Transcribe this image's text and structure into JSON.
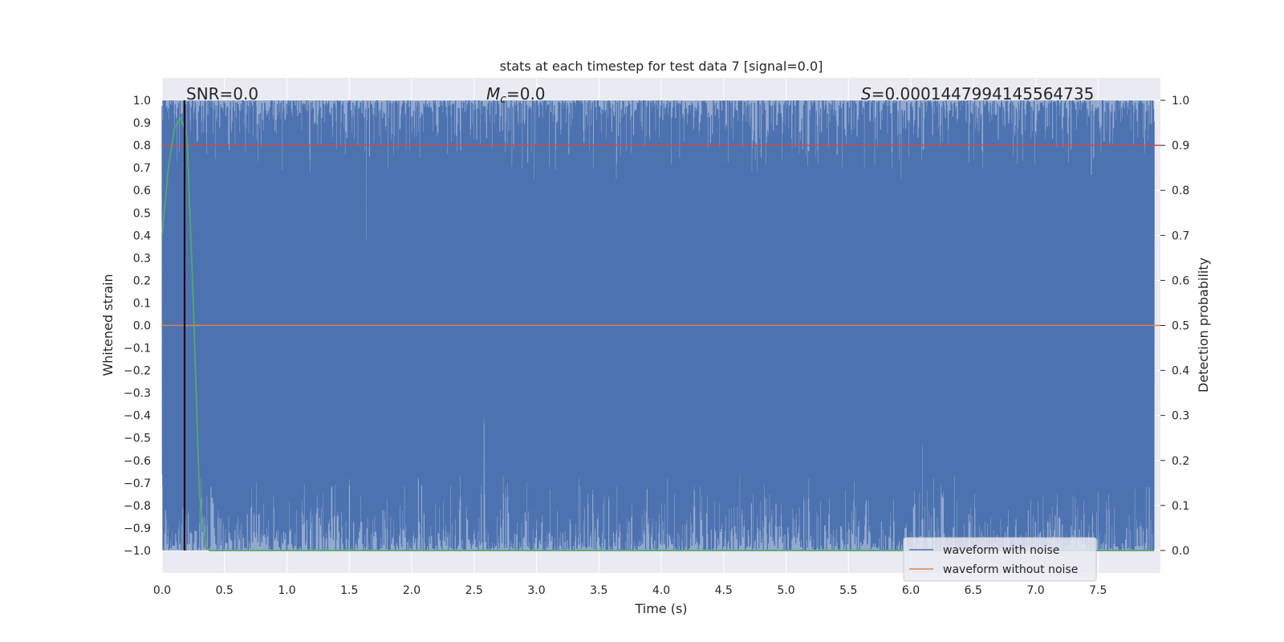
{
  "chart_data": {
    "type": "line",
    "title": "stats at each timestep for test data 7 [signal=0.0]",
    "xlabel": "Time (s)",
    "ylabel_left": "Whitened strain",
    "ylabel_right": "Detection probability",
    "xlim": [
      0,
      8
    ],
    "ylim_left": [
      -1.1,
      1.1
    ],
    "ylim_right": [
      -0.05,
      1.05
    ],
    "x_ticks": [
      "0.0",
      "0.5",
      "1.0",
      "1.5",
      "2.0",
      "2.5",
      "3.0",
      "3.5",
      "4.0",
      "4.5",
      "5.0",
      "5.5",
      "6.0",
      "6.5",
      "7.0",
      "7.5"
    ],
    "y_left_ticks": [
      "1.0",
      "0.9",
      "0.8",
      "0.7",
      "0.6",
      "0.5",
      "0.4",
      "0.3",
      "0.2",
      "0.1",
      "0.0",
      "−0.1",
      "−0.2",
      "−0.3",
      "−0.4",
      "−0.5",
      "−0.6",
      "−0.7",
      "−0.8",
      "−0.9",
      "−1.0"
    ],
    "y_right_ticks": [
      "1.0",
      "0.9",
      "0.8",
      "0.7",
      "0.6",
      "0.5",
      "0.4",
      "0.3",
      "0.2",
      "0.1",
      "0.0"
    ],
    "grid": true,
    "legend_placement": "lower-right",
    "annotations": {
      "snr": "SNR=0.0",
      "mc_symbol": "M",
      "mc_subscript": "c",
      "mc_value": "=0.0",
      "s_symbol": "S",
      "s_value": "=0.0001447994145564735"
    },
    "series": [
      {
        "name": "waveform with noise",
        "color": "#4c72b0",
        "axis": "left",
        "description_range": [
          -1.0,
          1.0
        ]
      },
      {
        "name": "waveform without noise",
        "color": "#dd8452",
        "axis": "left",
        "x": [
          0,
          8
        ],
        "y": [
          0.0,
          0.0
        ]
      },
      {
        "color": "#55a868",
        "axis": "right",
        "x": [
          0.0,
          0.05,
          0.1,
          0.15,
          0.2,
          0.25,
          0.3,
          0.35,
          0.38,
          7.95
        ],
        "y": [
          0.7,
          0.85,
          0.94,
          0.96,
          0.92,
          0.55,
          0.12,
          0.01,
          0.0,
          0.0
        ]
      }
    ],
    "threshold_line": {
      "color": "#c44e52",
      "axis": "right",
      "value": 0.9
    },
    "marker_line": {
      "color": "#000000",
      "x": 0.18
    }
  }
}
